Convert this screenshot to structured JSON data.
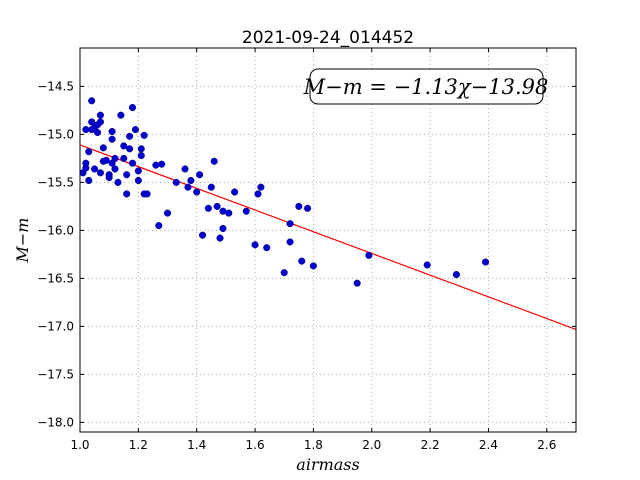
{
  "chart_data": {
    "type": "scatter",
    "title": "2021-09-24_014452",
    "xlabel": "airmass",
    "ylabel": "M−m",
    "xlim": [
      1.0,
      2.7
    ],
    "ylim": [
      -18.1,
      -14.1
    ],
    "xticks": [
      1.0,
      1.2,
      1.4,
      1.6,
      1.8,
      2.0,
      2.2,
      2.4,
      2.6
    ],
    "xtick_labels": [
      "1.0",
      "1.2",
      "1.4",
      "1.6",
      "1.8",
      "2.0",
      "2.2",
      "2.4",
      "2.6"
    ],
    "yticks": [
      -14.5,
      -15.0,
      -15.5,
      -16.0,
      -16.5,
      -17.0,
      -17.5,
      -18.0
    ],
    "ytick_labels": [
      "−14.5",
      "−15.0",
      "−15.5",
      "−16.0",
      "−16.5",
      "−17.0",
      "−17.5",
      "−18.0"
    ],
    "grid": true,
    "annotation": "M−m = −1.13χ−13.98",
    "colors": {
      "points": "#0000cc",
      "fit": "#ff0000",
      "grid": "#999999"
    },
    "fit": {
      "slope": -1.13,
      "intercept": -13.98,
      "x_range": [
        1.0,
        2.7
      ]
    },
    "points": [
      [
        1.01,
        -15.4
      ],
      [
        1.02,
        -15.3
      ],
      [
        1.02,
        -15.35
      ],
      [
        1.02,
        -14.95
      ],
      [
        1.03,
        -15.18
      ],
      [
        1.03,
        -15.48
      ],
      [
        1.04,
        -14.65
      ],
      [
        1.04,
        -14.87
      ],
      [
        1.04,
        -14.95
      ],
      [
        1.05,
        -15.36
      ],
      [
        1.05,
        -14.93
      ],
      [
        1.06,
        -14.98
      ],
      [
        1.06,
        -14.9
      ],
      [
        1.07,
        -14.8
      ],
      [
        1.07,
        -14.87
      ],
      [
        1.07,
        -15.4
      ],
      [
        1.08,
        -15.14
      ],
      [
        1.08,
        -15.28
      ],
      [
        1.09,
        -15.27
      ],
      [
        1.1,
        -15.45
      ],
      [
        1.1,
        -15.42
      ],
      [
        1.11,
        -15.05
      ],
      [
        1.11,
        -14.97
      ],
      [
        1.11,
        -15.3
      ],
      [
        1.12,
        -15.25
      ],
      [
        1.12,
        -15.36
      ],
      [
        1.13,
        -15.5
      ],
      [
        1.14,
        -14.8
      ],
      [
        1.15,
        -15.12
      ],
      [
        1.15,
        -15.25
      ],
      [
        1.16,
        -15.42
      ],
      [
        1.16,
        -15.62
      ],
      [
        1.17,
        -15.15
      ],
      [
        1.17,
        -15.02
      ],
      [
        1.18,
        -14.72
      ],
      [
        1.18,
        -15.3
      ],
      [
        1.19,
        -14.95
      ],
      [
        1.2,
        -15.38
      ],
      [
        1.2,
        -15.48
      ],
      [
        1.21,
        -15.22
      ],
      [
        1.21,
        -15.15
      ],
      [
        1.22,
        -15.62
      ],
      [
        1.22,
        -15.01
      ],
      [
        1.23,
        -15.62
      ],
      [
        1.26,
        -15.32
      ],
      [
        1.27,
        -15.95
      ],
      [
        1.28,
        -15.31
      ],
      [
        1.3,
        -15.82
      ],
      [
        1.33,
        -15.5
      ],
      [
        1.36,
        -15.36
      ],
      [
        1.37,
        -15.55
      ],
      [
        1.38,
        -15.48
      ],
      [
        1.4,
        -15.6
      ],
      [
        1.41,
        -15.42
      ],
      [
        1.42,
        -16.05
      ],
      [
        1.44,
        -15.77
      ],
      [
        1.45,
        -15.55
      ],
      [
        1.46,
        -15.28
      ],
      [
        1.47,
        -15.75
      ],
      [
        1.48,
        -16.08
      ],
      [
        1.49,
        -15.8
      ],
      [
        1.49,
        -15.98
      ],
      [
        1.51,
        -15.82
      ],
      [
        1.53,
        -15.6
      ],
      [
        1.57,
        -15.8
      ],
      [
        1.6,
        -16.15
      ],
      [
        1.61,
        -15.62
      ],
      [
        1.62,
        -15.55
      ],
      [
        1.64,
        -16.18
      ],
      [
        1.7,
        -16.44
      ],
      [
        1.72,
        -16.12
      ],
      [
        1.72,
        -15.93
      ],
      [
        1.75,
        -15.75
      ],
      [
        1.76,
        -16.32
      ],
      [
        1.78,
        -15.77
      ],
      [
        1.8,
        -16.37
      ],
      [
        1.95,
        -16.55
      ],
      [
        1.99,
        -16.26
      ],
      [
        2.19,
        -16.36
      ],
      [
        2.29,
        -16.46
      ],
      [
        2.39,
        -16.33
      ]
    ]
  }
}
